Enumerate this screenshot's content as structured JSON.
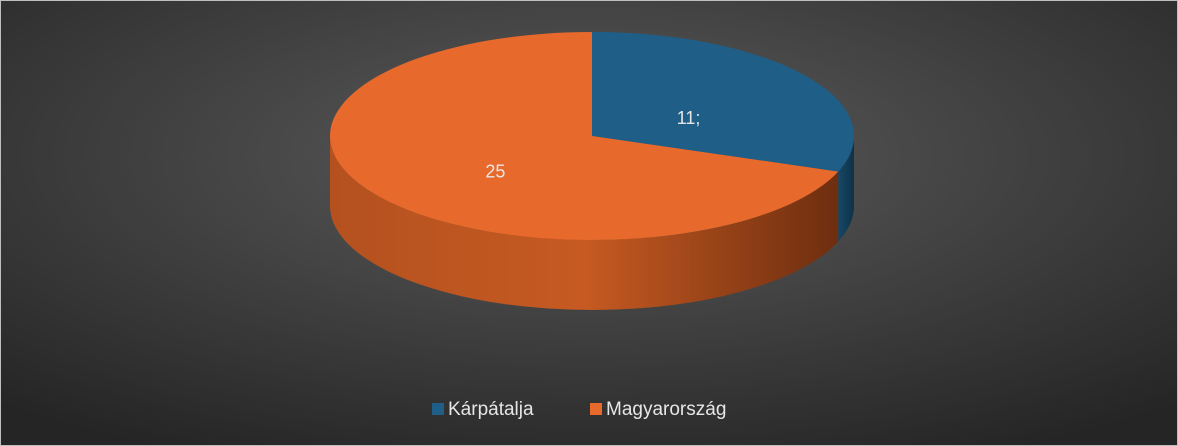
{
  "chart_data": {
    "type": "pie",
    "categories": [
      "Kárpátalja",
      "Magyarország"
    ],
    "values": [
      11,
      25
    ],
    "value_labels": [
      "11;",
      "25"
    ],
    "colors": [
      "#1f5f87",
      "#e8692c"
    ],
    "legend": "bottom"
  }
}
